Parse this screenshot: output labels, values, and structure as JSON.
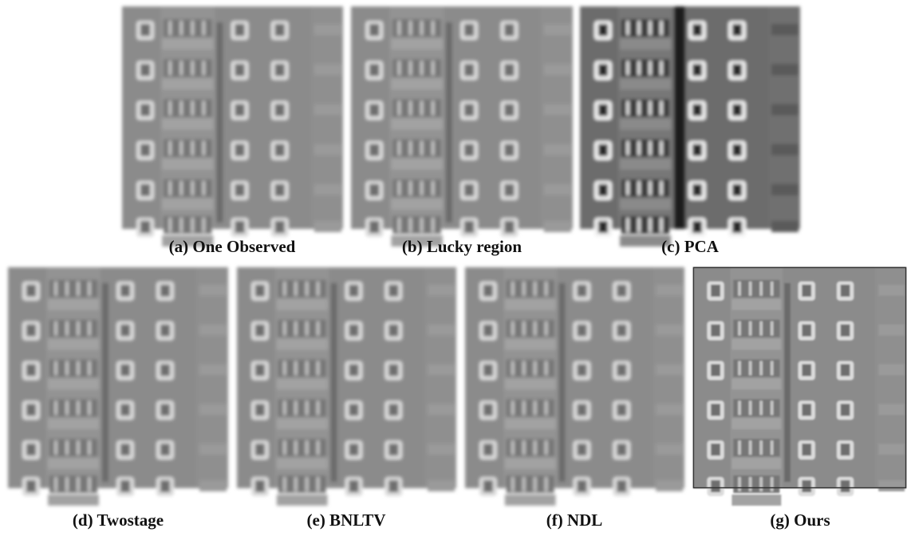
{
  "figure": {
    "panels": [
      {
        "caption": "(a) One Observed"
      },
      {
        "caption": "(b) Lucky region"
      },
      {
        "caption": "(c) PCA"
      },
      {
        "caption": "(d)  Twostage"
      },
      {
        "caption": "(e) BNLTV"
      },
      {
        "caption": "(f) NDL"
      },
      {
        "caption": "(g)  Ours"
      }
    ]
  }
}
